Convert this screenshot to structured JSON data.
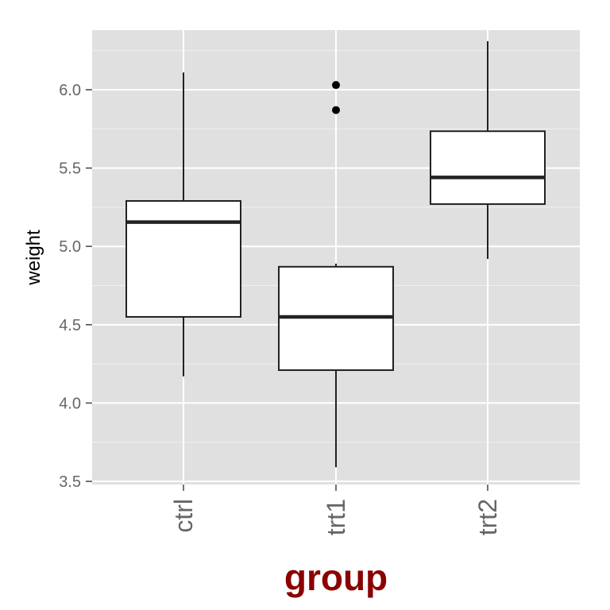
{
  "chart_data": {
    "type": "box",
    "xlabel": "group",
    "ylabel": "weight",
    "categories": [
      "ctrl",
      "trt1",
      "trt2"
    ],
    "y_ticks": [
      "3.5",
      "4.0",
      "4.5",
      "5.0",
      "5.5",
      "6.0"
    ],
    "ylim": [
      3.48,
      6.38
    ],
    "boxes": [
      {
        "category": "ctrl",
        "whisker_low": 4.17,
        "q1": 4.55,
        "median": 5.155,
        "q3": 5.29,
        "whisker_high": 6.11,
        "outliers": []
      },
      {
        "category": "trt1",
        "whisker_low": 3.59,
        "q1": 4.21,
        "median": 4.55,
        "q3": 4.87,
        "whisker_high": 4.89,
        "outliers": [
          5.87,
          6.03
        ]
      },
      {
        "category": "trt2",
        "whisker_low": 4.92,
        "q1": 5.27,
        "median": 5.44,
        "q3": 5.735,
        "whisker_high": 6.31,
        "outliers": []
      }
    ],
    "grid": true,
    "legend": "none",
    "colors": {
      "panel": "#e0e0e0",
      "grid": "#ffffff",
      "box_fill": "#ffffff",
      "box_stroke": "#222222",
      "tick_text": "#666666",
      "xlabel": "#8b0000",
      "ylabel": "#000000"
    }
  }
}
